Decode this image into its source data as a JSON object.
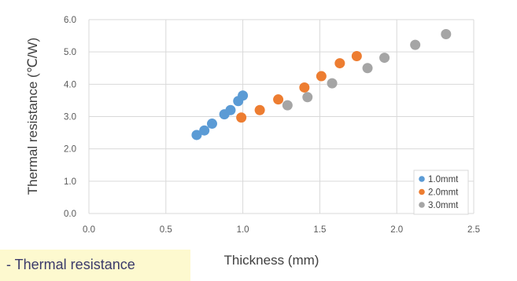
{
  "caption": "-  Thermal resistance",
  "chart_data": {
    "type": "scatter",
    "title": "",
    "xlabel": "Thickness (mm)",
    "ylabel": "Thermal resistance (℃/W)",
    "xlim": [
      0,
      2.5
    ],
    "ylim": [
      0,
      6
    ],
    "x_ticks": [
      "0.0",
      "0.5",
      "1.0",
      "1.5",
      "2.0",
      "2.5"
    ],
    "y_ticks": [
      "0.0",
      "1.0",
      "2.0",
      "3.0",
      "4.0",
      "5.0",
      "6.0"
    ],
    "grid": true,
    "legend_position": "bottom-right",
    "series": [
      {
        "name": "1.0mmt",
        "color": "#5b9bd5",
        "x": [
          0.7,
          0.75,
          0.8,
          0.88,
          0.92,
          0.97,
          1.0
        ],
        "y": [
          2.43,
          2.57,
          2.78,
          3.07,
          3.2,
          3.48,
          3.65
        ]
      },
      {
        "name": "2.0mmt",
        "color": "#ed7d31",
        "x": [
          0.99,
          1.11,
          1.23,
          1.4,
          1.51,
          1.63,
          1.74
        ],
        "y": [
          2.97,
          3.2,
          3.53,
          3.9,
          4.25,
          4.65,
          4.87
        ]
      },
      {
        "name": "3.0mmt",
        "color": "#a5a5a5",
        "x": [
          1.29,
          1.42,
          1.58,
          1.81,
          1.92,
          2.12,
          2.32
        ],
        "y": [
          3.35,
          3.6,
          4.03,
          4.5,
          4.82,
          5.22,
          5.55
        ]
      }
    ]
  }
}
